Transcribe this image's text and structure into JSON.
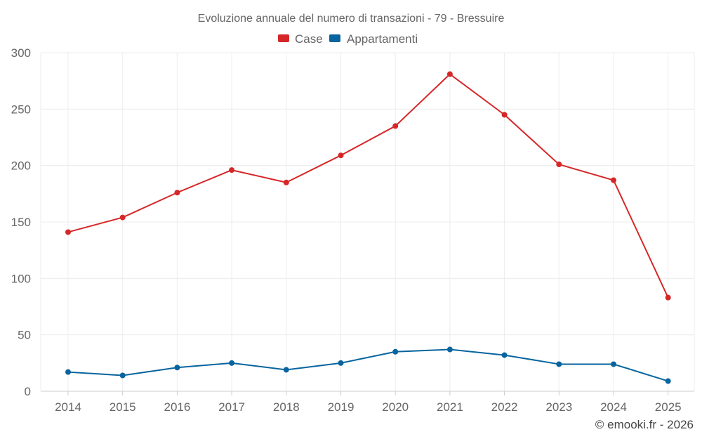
{
  "chart_data": {
    "type": "line",
    "title": "Evoluzione annuale del numero di transazioni - 79 - Bressuire",
    "categories": [
      "2014",
      "2015",
      "2016",
      "2017",
      "2018",
      "2019",
      "2020",
      "2021",
      "2022",
      "2023",
      "2024",
      "2025"
    ],
    "series": [
      {
        "name": "Case",
        "color": "#d62728",
        "values": [
          141,
          154,
          176,
          196,
          185,
          209,
          235,
          281,
          245,
          201,
          187,
          83
        ]
      },
      {
        "name": "Appartamenti",
        "color": "#08649e",
        "values": [
          17,
          14,
          21,
          25,
          19,
          25,
          35,
          37,
          32,
          24,
          24,
          9
        ]
      }
    ],
    "yticks": [
      0,
      50,
      100,
      150,
      200,
      250,
      300
    ],
    "ylim": [
      0,
      300
    ],
    "xlabel": "",
    "ylabel": "",
    "grid": true,
    "legend_position": "top-center"
  },
  "credit": "© emooki.fr - 2026"
}
